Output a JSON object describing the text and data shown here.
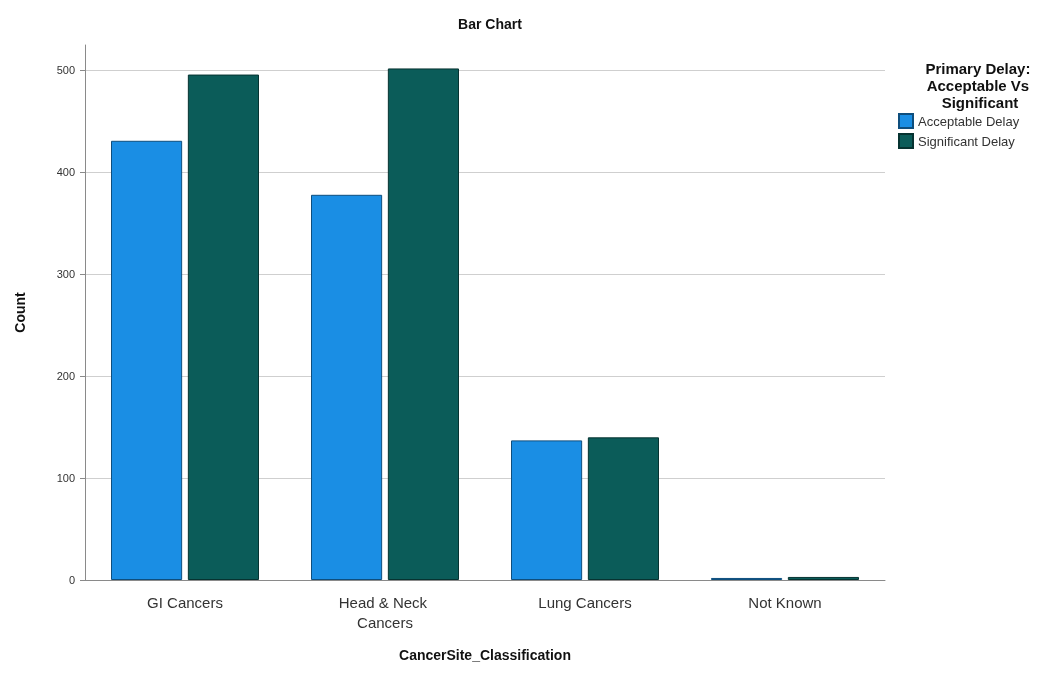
{
  "chart_data": {
    "type": "bar",
    "title": "Bar Chart",
    "xlabel": "CancerSite_Classification",
    "ylabel": "Count",
    "legend_title": "Primary Delay: Acceptable Vs Significant",
    "categories": [
      "GI Cancers",
      "Head & Neck Cancers",
      "Lung Cancers",
      "Not Known"
    ],
    "series": [
      {
        "name": "Acceptable Delay",
        "color": "#1a8ee4",
        "values": [
          431,
          378,
          137,
          2
        ]
      },
      {
        "name": "Significant Delay",
        "color": "#0b5c59",
        "values": [
          496,
          502,
          140,
          3
        ]
      }
    ],
    "ylim": [
      0,
      525
    ],
    "yticks": [
      0,
      100,
      200,
      300,
      400,
      500
    ],
    "grid": "y",
    "legend": "top right"
  }
}
